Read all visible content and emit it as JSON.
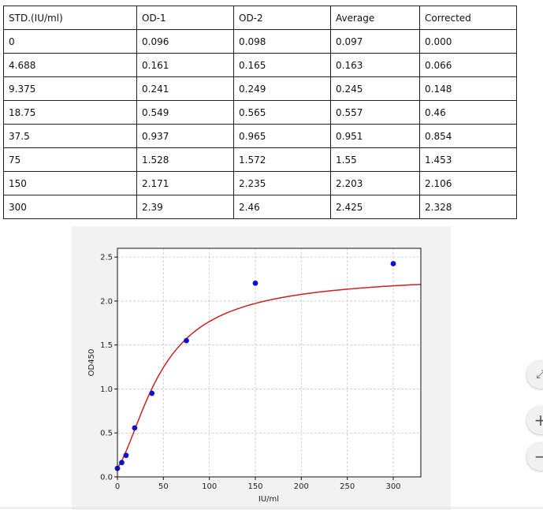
{
  "table": {
    "headers": [
      "STD.(IU/ml)",
      "OD-1",
      "OD-2",
      "Average",
      "Corrected"
    ],
    "rows": [
      [
        "0",
        "0.096",
        "0.098",
        "0.097",
        "0.000"
      ],
      [
        "4.688",
        "0.161",
        "0.165",
        "0.163",
        "0.066"
      ],
      [
        "9.375",
        "0.241",
        "0.249",
        "0.245",
        "0.148"
      ],
      [
        "18.75",
        "0.549",
        "0.565",
        "0.557",
        "0.46"
      ],
      [
        "37.5",
        "0.937",
        "0.965",
        "0.951",
        "0.854"
      ],
      [
        "75",
        "1.528",
        "1.572",
        "1.55",
        "1.453"
      ],
      [
        "150",
        "2.171",
        "2.235",
        "2.203",
        "2.106"
      ],
      [
        "300",
        "2.39",
        "2.46",
        "2.425",
        "2.328"
      ]
    ]
  },
  "chart_data": {
    "type": "scatter",
    "title": "",
    "xlabel": "IU/ml",
    "ylabel": "OD450",
    "xlim": [
      0,
      330
    ],
    "ylim": [
      0,
      2.6
    ],
    "xticks": [
      0,
      50,
      100,
      150,
      200,
      250,
      300
    ],
    "yticks": [
      0.0,
      0.5,
      1.0,
      1.5,
      2.0,
      2.5
    ],
    "xtick_labels": [
      "0",
      "50",
      "100",
      "150",
      "200",
      "250",
      "300"
    ],
    "ytick_labels": [
      "0.0",
      "0.5",
      "1.0",
      "1.5",
      "2.0",
      "2.5"
    ],
    "grid": true,
    "series": [
      {
        "type": "scatter",
        "x": [
          0,
          4.688,
          9.375,
          18.75,
          37.5,
          75,
          150,
          300
        ],
        "y": [
          0.097,
          0.163,
          0.245,
          0.557,
          0.951,
          1.55,
          2.203,
          2.425
        ],
        "color": "#1010d0"
      },
      {
        "type": "line",
        "x": [
          0,
          5,
          10,
          15,
          20,
          25,
          30,
          35,
          40,
          45,
          50,
          55,
          60,
          65,
          70,
          75,
          80,
          85,
          90,
          95,
          100,
          105,
          110,
          115,
          120,
          125,
          130,
          135,
          140,
          145,
          150,
          155,
          160,
          165,
          170,
          175,
          180,
          185,
          190,
          195,
          200,
          205,
          210,
          215,
          220,
          225,
          230,
          235,
          240,
          245,
          250,
          255,
          260,
          265,
          270,
          275,
          280,
          285,
          290,
          295,
          300,
          305,
          310,
          315,
          320,
          325,
          330
        ],
        "y": [
          0.097,
          0.189,
          0.305,
          0.435,
          0.57,
          0.703,
          0.83,
          0.948,
          1.057,
          1.156,
          1.245,
          1.325,
          1.397,
          1.462,
          1.52,
          1.573,
          1.62,
          1.662,
          1.701,
          1.736,
          1.767,
          1.796,
          1.823,
          1.847,
          1.87,
          1.89,
          1.909,
          1.927,
          1.944,
          1.959,
          1.973,
          1.987,
          1.999,
          2.011,
          2.022,
          2.032,
          2.042,
          2.051,
          2.06,
          2.068,
          2.076,
          2.083,
          2.09,
          2.097,
          2.103,
          2.109,
          2.115,
          2.12,
          2.125,
          2.13,
          2.135,
          2.14,
          2.144,
          2.148,
          2.152,
          2.156,
          2.16,
          2.163,
          2.167,
          2.17,
          2.173,
          2.176,
          2.179,
          2.182,
          2.185,
          2.187,
          2.19
        ],
        "color": "#d02020"
      }
    ]
  },
  "controls": {
    "expand_icon": "expand-icon",
    "expand_glyph": "⤢",
    "zoom_in_glyph": "+",
    "zoom_out_glyph": "−"
  }
}
